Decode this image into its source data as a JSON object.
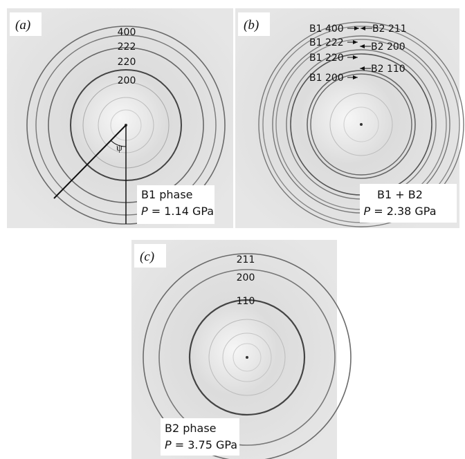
{
  "panels": [
    {
      "label": "(a)",
      "ring_labels": [
        "400",
        "222",
        "220",
        "200"
      ],
      "angle_symbol": "ψ",
      "phase": "B1 phase",
      "pressure_symbol": "P",
      "pressure": "= 1.14 GPa"
    },
    {
      "label": "(b)",
      "ring_labels": [
        "B1 400",
        "B2 211",
        "B1 222",
        "B2 200",
        "B1 220",
        "B2 110",
        "B1 200"
      ],
      "phase": "B1 + B2",
      "pressure_symbol": "P",
      "pressure": "= 2.38 GPa"
    },
    {
      "label": "(c)",
      "ring_labels": [
        "211",
        "200",
        "110"
      ],
      "phase": "B2 phase",
      "pressure_symbol": "P",
      "pressure": "= 3.75 GPa"
    }
  ]
}
